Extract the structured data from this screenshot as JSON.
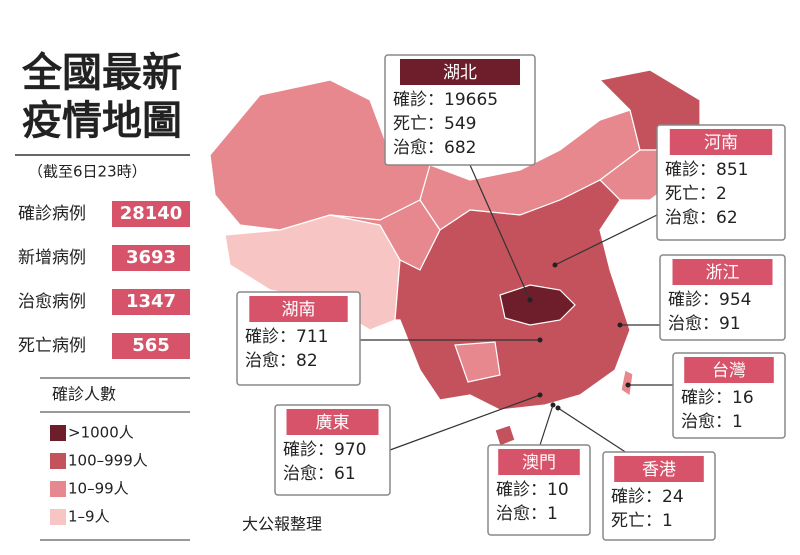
{
  "title": [
    "全國最新",
    "疫情地圖"
  ],
  "subtitle": "（截至6日23時）",
  "stats": [
    {
      "label": "確診病例",
      "value": 28140
    },
    {
      "label": "新增病例",
      "value": 3693
    },
    {
      "label": "治愈病例",
      "value": 1347
    },
    {
      "label": "死亡病例",
      "value": 565
    }
  ],
  "legend": {
    "title": "確診人數",
    "items": [
      {
        "label": ">1000人",
        "color": "#6e1d2a"
      },
      {
        "label": "100–999人",
        "color": "#c4525d"
      },
      {
        "label": "10–99人",
        "color": "#e6888d"
      },
      {
        "label": "1–9人",
        "color": "#f7c6c4"
      }
    ]
  },
  "callouts": [
    {
      "region": "湖北",
      "lines": [
        "確診：19665",
        "死亡：549",
        "治愈：682"
      ]
    },
    {
      "region": "河南",
      "lines": [
        "確診：851",
        "死亡：2",
        "治愈：62"
      ]
    },
    {
      "region": "浙江",
      "lines": [
        "確診：954",
        "治愈：91"
      ]
    },
    {
      "region": "湖南",
      "lines": [
        "確診：711",
        "治愈：82"
      ]
    },
    {
      "region": "台灣",
      "lines": [
        "確診：16",
        "治愈：1"
      ]
    },
    {
      "region": "廣東",
      "lines": [
        "確診：970",
        "治愈：61"
      ]
    },
    {
      "region": "澳門",
      "lines": [
        "確診：10",
        "治愈：1"
      ]
    },
    {
      "region": "香港",
      "lines": [
        "確診：24",
        "死亡：1"
      ]
    }
  ],
  "source": "大公報整理"
}
